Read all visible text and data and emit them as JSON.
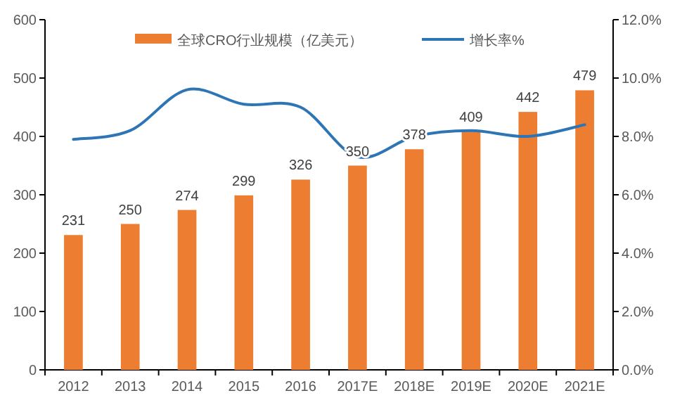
{
  "chart_data": {
    "type": "bar",
    "categories": [
      "2012",
      "2013",
      "2014",
      "2015",
      "2016",
      "2017E",
      "2018E",
      "2019E",
      "2020E",
      "2021E"
    ],
    "series": [
      {
        "name": "全球CRO行业规模（亿美元）",
        "color": "#ed7d31",
        "values": [
          231,
          250,
          274,
          299,
          326,
          350,
          378,
          409,
          442,
          479
        ],
        "value_labels": [
          "231",
          "250",
          "274",
          "299",
          "326",
          "350",
          "378",
          "409",
          "442",
          "479"
        ]
      },
      {
        "name": "增长率%",
        "type": "line",
        "axis": "y2",
        "color": "#2e75b6",
        "values": [
          7.9,
          8.2,
          9.6,
          9.1,
          9.0,
          7.3,
          8.0,
          8.2,
          8.0,
          8.4
        ]
      }
    ],
    "ylim": [
      0,
      600
    ],
    "yticks": [
      0,
      100,
      200,
      300,
      400,
      500,
      600
    ],
    "y2lim": [
      0,
      12
    ],
    "y2ticks": [
      {
        "value": 0,
        "label": "0.0%"
      },
      {
        "value": 2,
        "label": "2.0%"
      },
      {
        "value": 4,
        "label": "4.0%"
      },
      {
        "value": 6,
        "label": "6.0%"
      },
      {
        "value": 8,
        "label": "8.0%"
      },
      {
        "value": 10,
        "label": "10.0%"
      },
      {
        "value": 12,
        "label": "12.0%"
      }
    ],
    "legend": "top",
    "grid": false,
    "marker": "none",
    "line_style": "solid"
  }
}
